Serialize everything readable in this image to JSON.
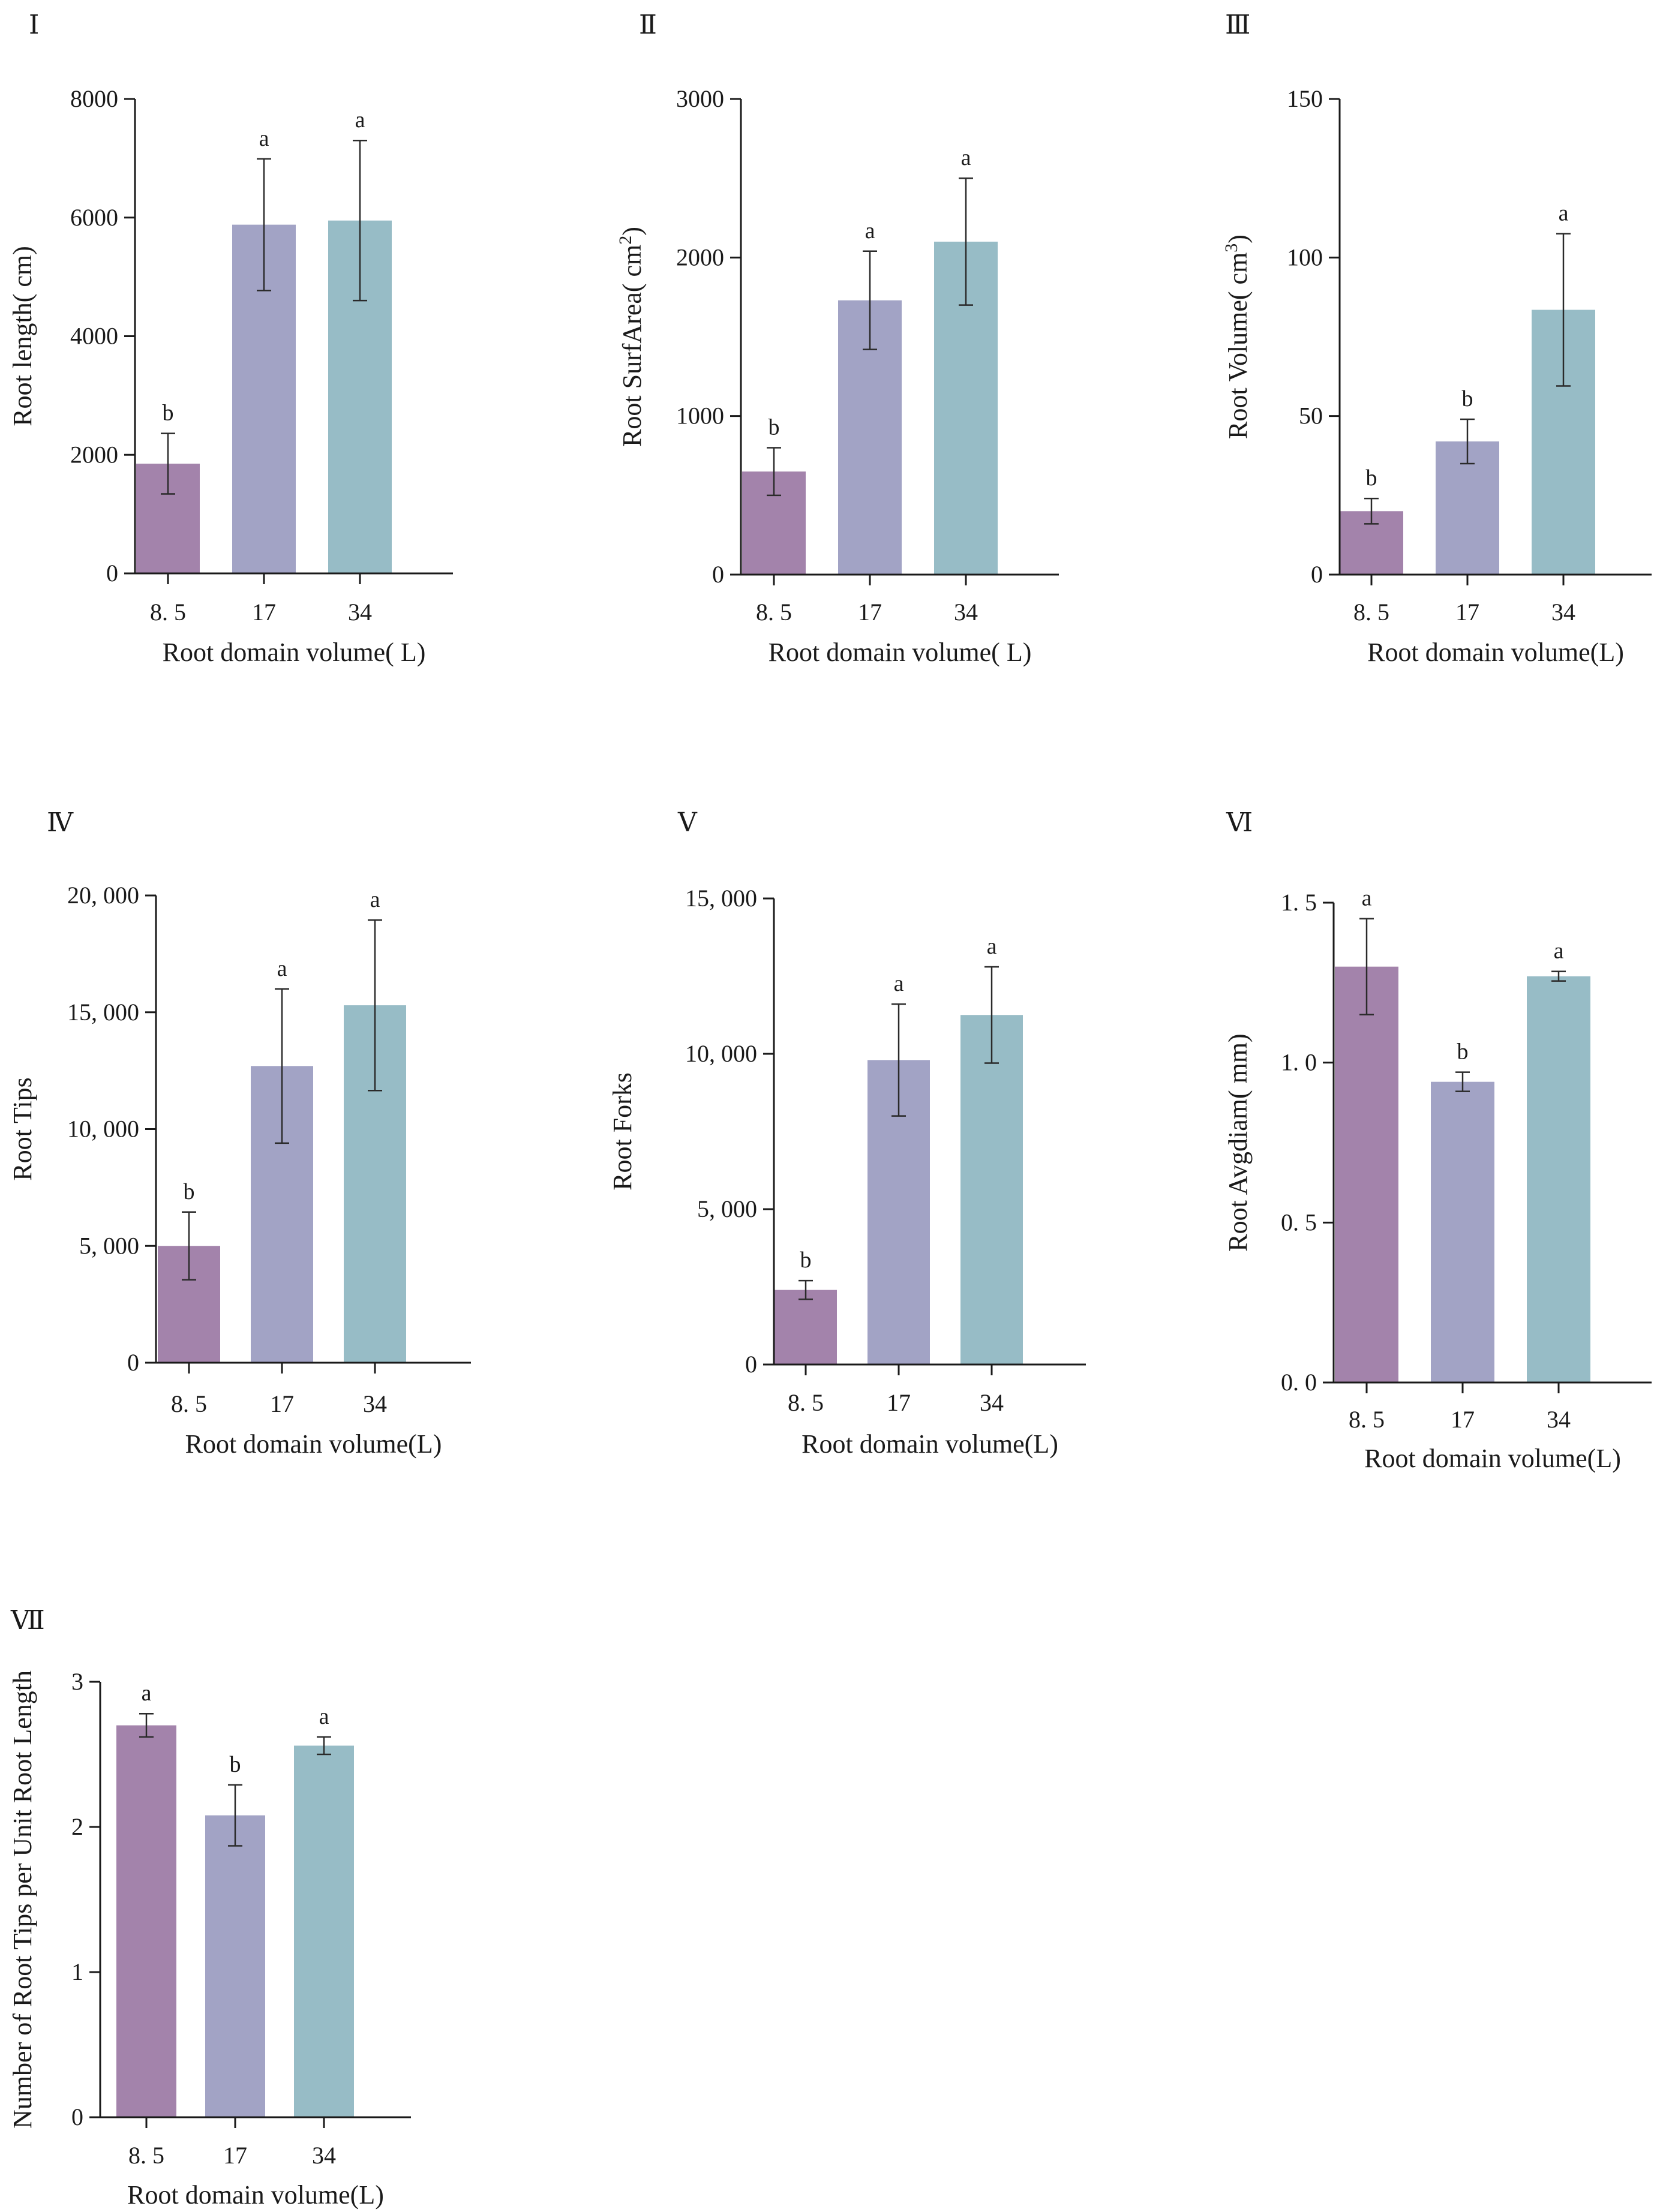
{
  "figure": {
    "title": ""
  },
  "chart_data": [
    {
      "type": "bar",
      "panel_label": "Ⅰ",
      "categories": [
        "8. 5",
        "17",
        "34"
      ],
      "values": [
        1850,
        5880,
        5950
      ],
      "errors": [
        510,
        1110,
        1350
      ],
      "significance": [
        "b",
        "a",
        "a"
      ],
      "colors": [
        "#a383ab",
        "#a2a3c5",
        "#97bcc6"
      ],
      "xlabel": "Root domain volume( L)",
      "ylabel": "Root length( cm)",
      "ylabel_sup": "",
      "ylabel_end": "",
      "ylim": [
        0,
        8000
      ],
      "yticks": [
        0,
        2000,
        4000,
        6000,
        8000
      ],
      "ytick_labels": [
        "0",
        "2000",
        "4000",
        "6000",
        "8000"
      ]
    },
    {
      "type": "bar",
      "panel_label": "Ⅱ",
      "categories": [
        "8. 5",
        "17",
        "34"
      ],
      "values": [
        650,
        1730,
        2100
      ],
      "errors": [
        150,
        310,
        400
      ],
      "significance": [
        "b",
        "a",
        "a"
      ],
      "colors": [
        "#a383ab",
        "#a2a3c5",
        "#97bcc6"
      ],
      "xlabel": "Root domain volume( L)",
      "ylabel": "Root SurfArea( cm",
      "ylabel_sup": "2",
      "ylabel_end": ")",
      "ylim": [
        0,
        3000
      ],
      "yticks": [
        0,
        1000,
        2000,
        3000
      ],
      "ytick_labels": [
        "0",
        "1000",
        "2000",
        "3000"
      ]
    },
    {
      "type": "bar",
      "panel_label": "Ⅲ",
      "categories": [
        "8. 5",
        "17",
        "34"
      ],
      "values": [
        20,
        42,
        83.5
      ],
      "errors": [
        4,
        7,
        24
      ],
      "significance": [
        "b",
        "b",
        "a"
      ],
      "colors": [
        "#a383ab",
        "#a2a3c5",
        "#97bcc6"
      ],
      "xlabel": "Root domain volume(L)",
      "ylabel": "Root Volume( cm",
      "ylabel_sup": "3",
      "ylabel_end": ")",
      "ylim": [
        0,
        150
      ],
      "yticks": [
        0,
        50,
        100,
        150
      ],
      "ytick_labels": [
        "0",
        "50",
        "100",
        "150"
      ]
    },
    {
      "type": "bar",
      "panel_label": "Ⅳ",
      "categories": [
        "8. 5",
        "17",
        "34"
      ],
      "values": [
        5000,
        12700,
        15300
      ],
      "errors": [
        1450,
        3300,
        3650
      ],
      "significance": [
        "b",
        "a",
        "a"
      ],
      "colors": [
        "#a383ab",
        "#a2a3c5",
        "#97bcc6"
      ],
      "xlabel": "Root domain volume(L)",
      "ylabel": "Root Tips",
      "ylabel_sup": "",
      "ylabel_end": "",
      "ylim": [
        0,
        20000
      ],
      "yticks": [
        0,
        5000,
        10000,
        15000,
        20000
      ],
      "ytick_labels": [
        "0",
        "5, 000",
        "10, 000",
        "15, 000",
        "20, 000"
      ]
    },
    {
      "type": "bar",
      "panel_label": "Ⅴ",
      "categories": [
        "8. 5",
        "17",
        "34"
      ],
      "values": [
        2400,
        9800,
        11250
      ],
      "errors": [
        300,
        1800,
        1550
      ],
      "significance": [
        "b",
        "a",
        "a"
      ],
      "colors": [
        "#a383ab",
        "#a2a3c5",
        "#97bcc6"
      ],
      "xlabel": "Root domain volume(L)",
      "ylabel": "Root Forks",
      "ylabel_sup": "",
      "ylabel_end": "",
      "ylim": [
        0,
        15000
      ],
      "yticks": [
        0,
        5000,
        10000,
        15000
      ],
      "ytick_labels": [
        "0",
        "5, 000",
        "10, 000",
        "15, 000"
      ]
    },
    {
      "type": "bar",
      "panel_label": "Ⅵ",
      "categories": [
        "8. 5",
        "17",
        "34"
      ],
      "values": [
        1.3,
        0.94,
        1.27
      ],
      "errors": [
        0.15,
        0.03,
        0.015
      ],
      "significance": [
        "a",
        "b",
        "a"
      ],
      "colors": [
        "#a383ab",
        "#a2a3c5",
        "#97bcc6"
      ],
      "xlabel": "Root domain volume(L)",
      "ylabel": "Root Avgdiam( mm)",
      "ylabel_sup": "",
      "ylabel_end": "",
      "ylim": [
        0,
        1.5
      ],
      "yticks": [
        0,
        0.5,
        1.0,
        1.5
      ],
      "ytick_labels": [
        "0. 0",
        "0. 5",
        "1. 0",
        "1. 5"
      ]
    },
    {
      "type": "bar",
      "panel_label": "Ⅶ",
      "categories": [
        "8. 5",
        "17",
        "34"
      ],
      "values": [
        2.7,
        2.08,
        2.56
      ],
      "errors": [
        0.08,
        0.21,
        0.06
      ],
      "significance": [
        "a",
        "b",
        "a"
      ],
      "colors": [
        "#a383ab",
        "#a2a3c5",
        "#97bcc6"
      ],
      "xlabel": "Root domain volume(L)",
      "ylabel": "Number of Root Tips per Unit Root Length",
      "ylabel_sup": "",
      "ylabel_end": "",
      "ylim": [
        0,
        3
      ],
      "yticks": [
        0,
        1,
        2,
        3
      ],
      "ytick_labels": [
        "0",
        "1",
        "2",
        "3"
      ]
    }
  ]
}
